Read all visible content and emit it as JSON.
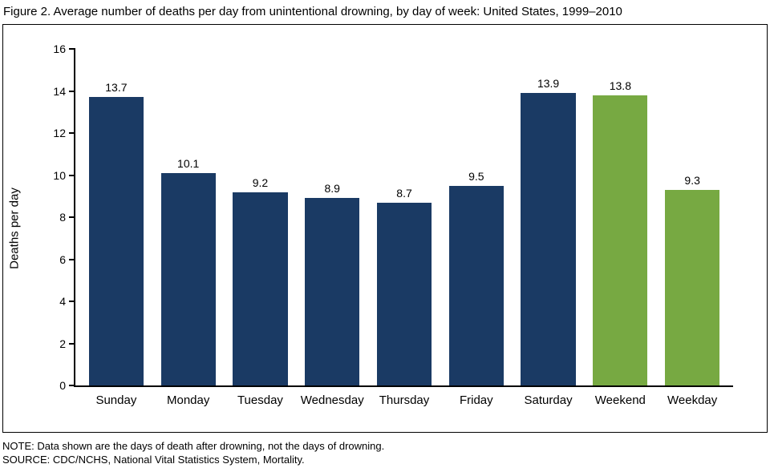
{
  "title": "Figure 2. Average number of deaths per day from unintentional drowning, by day of week: United States, 1999–2010",
  "notes": {
    "note": "NOTE: Data shown are the days of death after drowning, not the days of drowning.",
    "source": "SOURCE: CDC/NCHS, National Vital Statistics System, Mortality."
  },
  "colors": {
    "day_bar": "#1a3a64",
    "summary_bar": "#77a942",
    "axis": "#000000"
  },
  "chart_data": {
    "type": "bar",
    "categories": [
      "Sunday",
      "Monday",
      "Tuesday",
      "Wednesday",
      "Thursday",
      "Friday",
      "Saturday",
      "Weekend",
      "Weekday"
    ],
    "values": [
      13.7,
      10.1,
      9.2,
      8.9,
      8.7,
      9.5,
      13.9,
      13.8,
      9.3
    ],
    "bar_color_keys": [
      "day_bar",
      "day_bar",
      "day_bar",
      "day_bar",
      "day_bar",
      "day_bar",
      "day_bar",
      "summary_bar",
      "summary_bar"
    ],
    "title": "Figure 2. Average number of deaths per day from unintentional drowning, by day of week: United States, 1999–2010",
    "xlabel": "",
    "ylabel": "Deaths per day",
    "ylim": [
      0,
      16
    ],
    "yticks": [
      0,
      2,
      4,
      6,
      8,
      10,
      12,
      14,
      16
    ],
    "grid": false,
    "legend": "none",
    "value_labels": "above bars, one decimal place"
  }
}
